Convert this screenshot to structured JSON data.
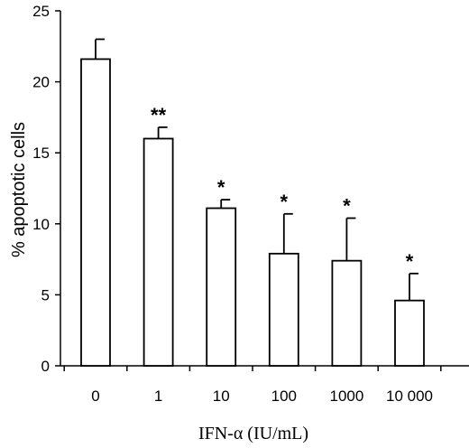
{
  "chart_data": {
    "type": "bar",
    "categories": [
      "0",
      "1",
      "10",
      "100",
      "1000",
      "10 000"
    ],
    "values": [
      21.6,
      16.0,
      11.1,
      7.9,
      7.4,
      4.6
    ],
    "error_upper": [
      23.0,
      16.8,
      11.7,
      10.7,
      10.4,
      6.5
    ],
    "significance": [
      "",
      "**",
      "*",
      "*",
      "*",
      "*"
    ],
    "title": "",
    "xlabel": "IFN-α (IU/mL)",
    "ylabel": "% apoptotic cells",
    "ylim": [
      0,
      25
    ],
    "yticks": [
      "0",
      "5",
      "10",
      "15",
      "20",
      "25"
    ],
    "grid": false,
    "bar_fill": "#ffffff",
    "bar_stroke": "#000000"
  }
}
